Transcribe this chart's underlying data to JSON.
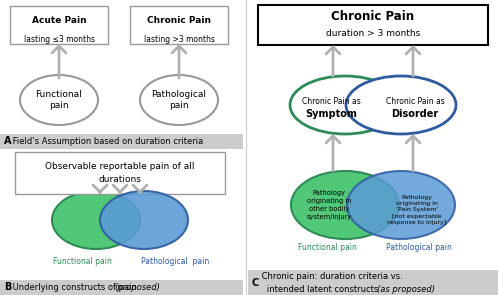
{
  "bg_color": "#ffffff",
  "panel_A": {
    "box1_line1": "Acute Pain",
    "box1_line2": "lasting ≤3 months",
    "box2_line1": "Chronic Pain",
    "box2_line2": "lasting >3 months",
    "ellipse1_text": "Functional\npain",
    "ellipse2_text": "Pathological\npain",
    "label_bold": "A",
    "label_rest": " Field’s Assumption based on duration criteria"
  },
  "panel_B": {
    "box_text": "Observable reportable pain of all\ndurations",
    "label_left": "Functional pain",
    "label_right": "Pathological  pain",
    "label_bold": "B",
    "label_rest": " Underlying constructs of pain ",
    "label_italic": "(proposed)"
  },
  "panel_C": {
    "box_line1": "Chronic Pain",
    "box_line2": "duration > 3 months",
    "upper_left_normal": "Chronic Pain as",
    "upper_left_bold": "Symptom",
    "upper_right_normal": "Chronic Pain as",
    "upper_right_bold": "Disorder",
    "lower_left": "Pathology\noriginating in\nother bodily\nsystem/injury",
    "lower_right": "Pathology\noriginating in\n‘Pain System’\n[not expectable\nresponse to injury]",
    "label_left": "Functional pain",
    "label_right": "Pathological pain",
    "label_bold": "C",
    "label_rest": " Chronic pain: duration criteria vs.\n   intended latent constructs ",
    "label_italic": "(as proposed)"
  },
  "green_color": "#3cb371",
  "green_fill": "#5dbe8a",
  "blue_color": "#4169e1",
  "blue_fill": "#6495ed",
  "arrow_color": "#b0b0b0",
  "box_edge_color": "#b0b0b0",
  "label_bg_color": "#cccccc",
  "divider_color": "#dddddd"
}
